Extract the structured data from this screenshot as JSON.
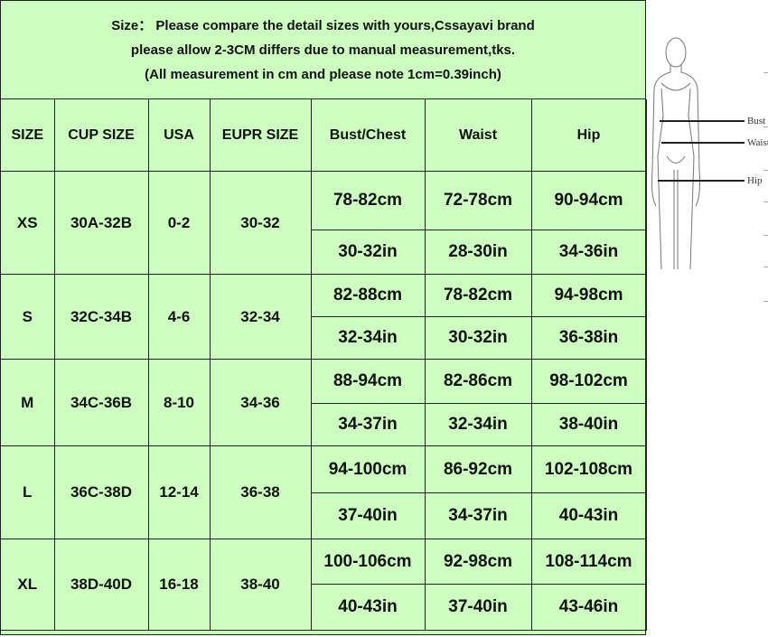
{
  "notice": [
    "Size： Please compare the detail sizes with yours,Cssayavi brand",
    "please allow 2-3CM differs due to manual measurement,tks.",
    "(All measurement in cm and please note 1cm=0.39inch)"
  ],
  "headers": [
    "SIZE",
    "CUP SIZE",
    "USA",
    "EUPR SIZE",
    "Bust/Chest",
    "Waist",
    "Hip"
  ],
  "rows": [
    {
      "size": "XS",
      "cup": "30A-32B",
      "usa": "0-2",
      "eu": "30-32",
      "cm": [
        "78-82cm",
        "72-78cm",
        "90-94cm"
      ],
      "in": [
        "30-32in",
        "28-30in",
        "34-36in"
      ]
    },
    {
      "size": "S",
      "cup": "32C-34B",
      "usa": "4-6",
      "eu": "32-34",
      "cm": [
        "82-88cm",
        "78-82cm",
        "94-98cm"
      ],
      "in": [
        "32-34in",
        "30-32in",
        "36-38in"
      ]
    },
    {
      "size": "M",
      "cup": "34C-36B",
      "usa": "8-10",
      "eu": "34-36",
      "cm": [
        "88-94cm",
        "82-86cm",
        "98-102cm"
      ],
      "in": [
        "34-37in",
        "32-34in",
        "38-40in"
      ]
    },
    {
      "size": "L",
      "cup": "36C-38D",
      "usa": "12-14",
      "eu": "36-38",
      "cm": [
        "94-100cm",
        "86-92cm",
        "102-108cm"
      ],
      "in": [
        "37-40in",
        "34-37in",
        "40-43in"
      ]
    },
    {
      "size": "XL",
      "cup": "38D-40D",
      "usa": "16-18",
      "eu": "38-40",
      "cm": [
        "100-106cm",
        "92-98cm",
        "108-114cm"
      ],
      "in": [
        "40-43in",
        "37-40in",
        "43-46in"
      ]
    }
  ],
  "figure": {
    "labels": [
      "Bust",
      "Waist",
      "Hip"
    ]
  },
  "colors": {
    "table_bg": "#ccffc0",
    "border": "#222222"
  }
}
